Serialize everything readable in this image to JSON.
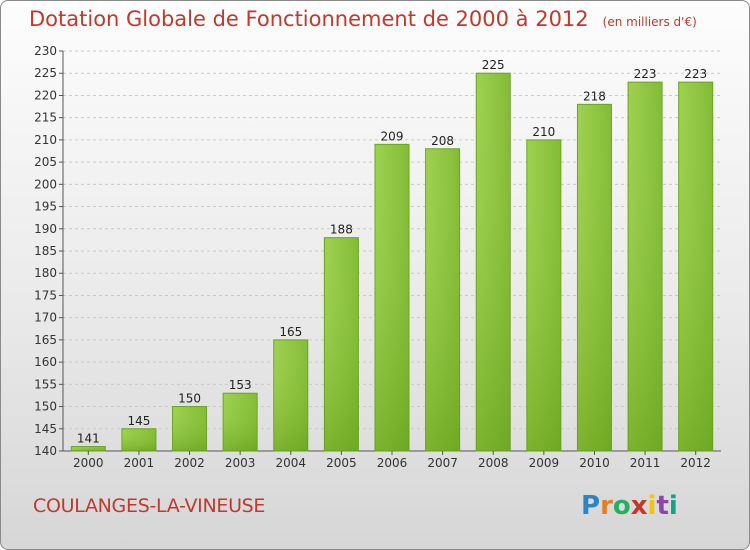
{
  "title": "Dotation Globale de Fonctionnement de 2000 à 2012",
  "unit": "(en milliers d'€)",
  "commune": "COULANGES-LA-VINEUSE",
  "logo": "Proxiti",
  "colors": {
    "title": "#c0392b",
    "bar_light": "#9fd152",
    "bar_dark": "#5f9a12"
  },
  "chart_data": {
    "type": "bar",
    "title": "Dotation Globale de Fonctionnement de 2000 à 2012",
    "subtitle": "(en milliers d'€)",
    "xlabel": "",
    "ylabel": "",
    "categories": [
      "2000",
      "2001",
      "2002",
      "2003",
      "2004",
      "2005",
      "2006",
      "2007",
      "2008",
      "2009",
      "2010",
      "2011",
      "2012"
    ],
    "values": [
      141,
      145,
      150,
      153,
      165,
      188,
      209,
      208,
      225,
      210,
      218,
      223,
      223
    ],
    "ylim": [
      140,
      230
    ],
    "yticks": [
      140,
      145,
      150,
      155,
      160,
      165,
      170,
      175,
      180,
      185,
      190,
      195,
      200,
      205,
      210,
      215,
      220,
      225,
      230
    ],
    "grid": true,
    "legend": "none"
  }
}
